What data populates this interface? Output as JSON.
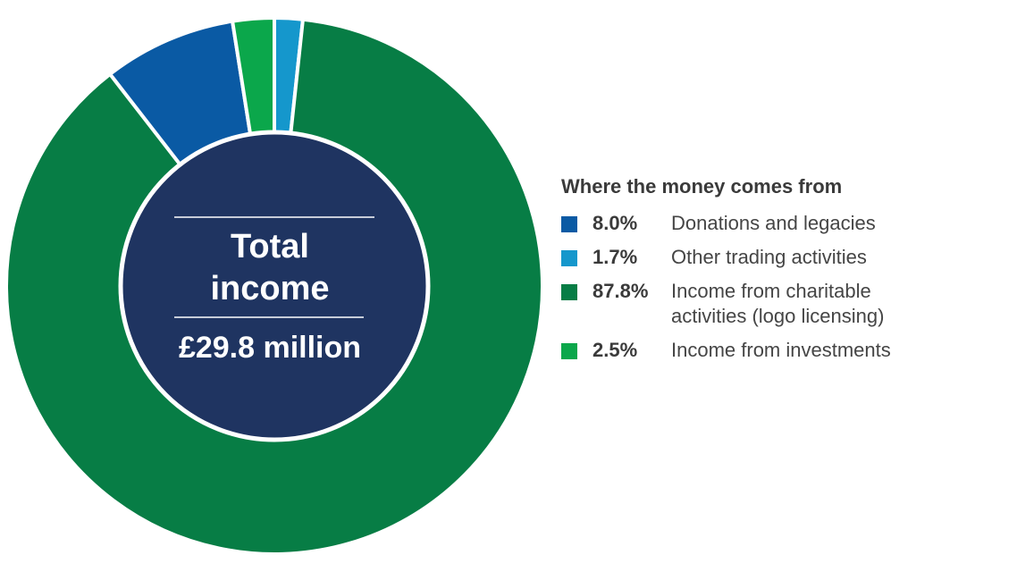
{
  "chart_data": {
    "type": "pie",
    "style": "donut",
    "center": {
      "line1": "Total",
      "line2": "income",
      "value": "£29.8 million"
    },
    "legend_title": "Where the money comes from",
    "legend_placement": "right",
    "slices": [
      {
        "label": "Donations and legacies",
        "pct_text": "8.0%",
        "value": 8.0,
        "color": "#0a5aa4"
      },
      {
        "label": "Other trading activities",
        "pct_text": "1.7%",
        "value": 1.7,
        "color": "#1597cc"
      },
      {
        "label": "Income from charitable\nactivities (logo licensing)",
        "pct_text": "87.8%",
        "value": 87.8,
        "color": "#077d45"
      },
      {
        "label": "Income from investments",
        "pct_text": "2.5%",
        "value": 2.5,
        "color": "#0ba74b"
      }
    ],
    "draw_order": [
      1,
      2,
      0,
      3
    ],
    "center_color": "#1f3461"
  }
}
